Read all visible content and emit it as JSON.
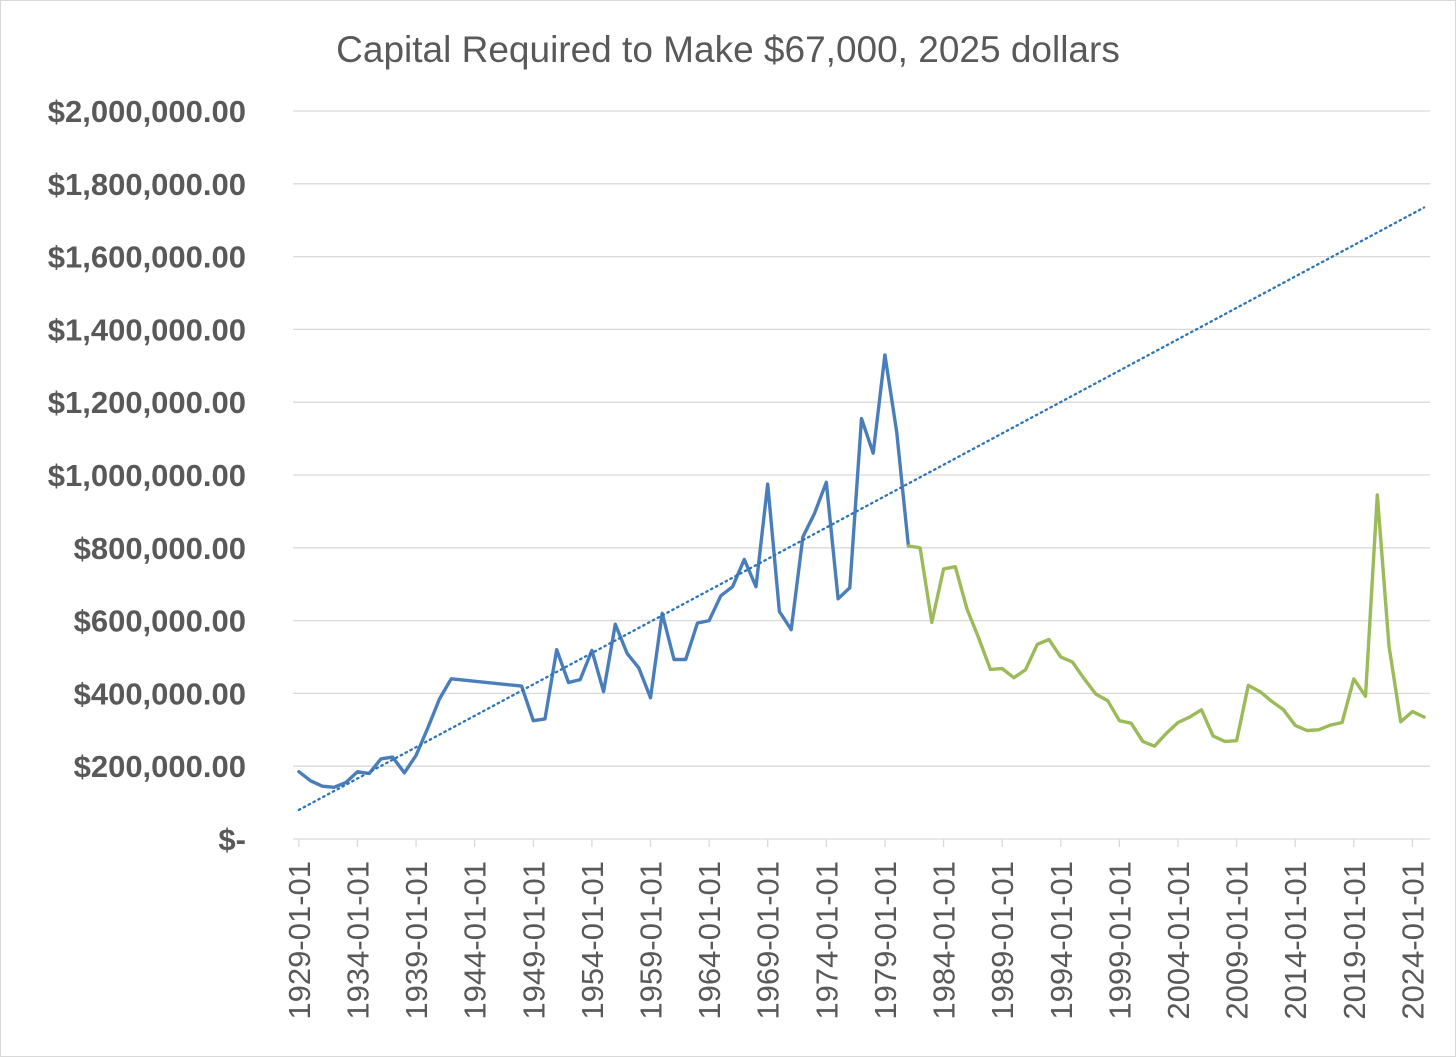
{
  "chart_data": {
    "type": "line",
    "title": "Capital Required to Make $67,000, 2025 dollars",
    "xlabel": "",
    "ylabel": "",
    "x_start_year": 1929,
    "x_end_year": 2025,
    "x_tick_labels": [
      "1929-01-01",
      "1934-01-01",
      "1939-01-01",
      "1944-01-01",
      "1949-01-01",
      "1954-01-01",
      "1959-01-01",
      "1964-01-01",
      "1969-01-01",
      "1974-01-01",
      "1979-01-01",
      "1984-01-01",
      "1989-01-01",
      "1994-01-01",
      "1999-01-01",
      "2004-01-01",
      "2009-01-01",
      "2014-01-01",
      "2019-01-01",
      "2024-01-01"
    ],
    "y_ticks": [
      0,
      200000,
      400000,
      600000,
      800000,
      1000000,
      1200000,
      1400000,
      1600000,
      1800000,
      2000000
    ],
    "y_tick_labels": [
      "$-",
      "$200,000.00",
      "$400,000.00",
      "$600,000.00",
      "$800,000.00",
      "$1,000,000.00",
      "$1,200,000.00",
      "$1,400,000.00",
      "$1,600,000.00",
      "$1,800,000.00",
      "$2,000,000.00"
    ],
    "ylim": [
      0,
      2000000
    ],
    "grid": true,
    "legend": "none",
    "series": [
      {
        "color": "#4a7ebb",
        "style": "solid",
        "points": [
          [
            "1929-01-01",
            185000
          ],
          [
            "1930-01-01",
            160000
          ],
          [
            "1931-01-01",
            145000
          ],
          [
            "1932-01-01",
            142000
          ],
          [
            "1933-01-01",
            155000
          ],
          [
            "1934-01-01",
            185000
          ],
          [
            "1935-01-01",
            180000
          ],
          [
            "1936-01-01",
            220000
          ],
          [
            "1937-01-01",
            225000
          ],
          [
            "1938-01-01",
            182000
          ],
          [
            "1939-01-01",
            230000
          ],
          [
            "1940-01-01",
            305000
          ],
          [
            "1941-01-01",
            385000
          ],
          [
            "1942-01-01",
            440000
          ],
          [
            "1948-01-01",
            420000
          ],
          [
            "1949-01-01",
            325000
          ],
          [
            "1950-01-01",
            330000
          ],
          [
            "1951-01-01",
            520000
          ],
          [
            "1952-01-01",
            430000
          ],
          [
            "1953-01-01",
            438000
          ],
          [
            "1954-01-01",
            518000
          ],
          [
            "1955-01-01",
            405000
          ],
          [
            "1956-01-01",
            590000
          ],
          [
            "1957-01-01",
            510000
          ],
          [
            "1958-01-01",
            470000
          ],
          [
            "1959-01-01",
            388000
          ],
          [
            "1960-01-01",
            620000
          ],
          [
            "1961-01-01",
            493000
          ],
          [
            "1962-01-01",
            493000
          ],
          [
            "1963-01-01",
            593000
          ],
          [
            "1964-01-01",
            600000
          ],
          [
            "1965-01-01",
            668000
          ],
          [
            "1966-01-01",
            693000
          ],
          [
            "1967-01-01",
            768000
          ],
          [
            "1968-01-01",
            693000
          ],
          [
            "1969-01-01",
            975000
          ],
          [
            "1970-01-01",
            625000
          ],
          [
            "1971-01-01",
            575000
          ],
          [
            "1972-01-01",
            830000
          ],
          [
            "1973-01-01",
            895000
          ],
          [
            "1974-01-01",
            980000
          ],
          [
            "1975-01-01",
            660000
          ],
          [
            "1976-01-01",
            690000
          ],
          [
            "1977-01-01",
            1155000
          ],
          [
            "1978-01-01",
            1060000
          ],
          [
            "1979-01-01",
            1330000
          ],
          [
            "1980-01-01",
            1118000
          ],
          [
            "1981-01-01",
            805000
          ]
        ]
      },
      {
        "color": "#9bbb59",
        "style": "solid",
        "points": [
          [
            "1981-01-01",
            805000
          ],
          [
            "1982-01-01",
            800000
          ],
          [
            "1983-01-01",
            595000
          ],
          [
            "1984-01-01",
            742000
          ],
          [
            "1985-01-01",
            748000
          ],
          [
            "1986-01-01",
            632000
          ],
          [
            "1987-01-01",
            552000
          ],
          [
            "1988-01-01",
            466000
          ],
          [
            "1989-01-01",
            468000
          ],
          [
            "1990-01-01",
            443000
          ],
          [
            "1991-01-01",
            465000
          ],
          [
            "1992-01-01",
            535000
          ],
          [
            "1993-01-01",
            548000
          ],
          [
            "1994-01-01",
            500000
          ],
          [
            "1995-01-01",
            486000
          ],
          [
            "1996-01-01",
            440000
          ],
          [
            "1997-01-01",
            398000
          ],
          [
            "1998-01-01",
            380000
          ],
          [
            "1999-01-01",
            325000
          ],
          [
            "2000-01-01",
            318000
          ],
          [
            "2001-01-01",
            268000
          ],
          [
            "2002-01-01",
            255000
          ],
          [
            "2003-01-01",
            290000
          ],
          [
            "2004-01-01",
            320000
          ],
          [
            "2005-01-01",
            335000
          ],
          [
            "2006-01-01",
            355000
          ],
          [
            "2007-01-01",
            283000
          ],
          [
            "2008-01-01",
            268000
          ],
          [
            "2009-01-01",
            270000
          ],
          [
            "2010-01-01",
            422000
          ],
          [
            "2011-01-01",
            405000
          ],
          [
            "2012-01-01",
            378000
          ],
          [
            "2013-01-01",
            355000
          ],
          [
            "2014-01-01",
            312000
          ],
          [
            "2015-01-01",
            298000
          ],
          [
            "2016-01-01",
            300000
          ],
          [
            "2017-01-01",
            313000
          ],
          [
            "2018-01-01",
            320000
          ],
          [
            "2019-01-01",
            440000
          ],
          [
            "2020-01-01",
            392000
          ],
          [
            "2021-01-01",
            945000
          ],
          [
            "2022-01-01",
            530000
          ],
          [
            "2023-01-01",
            322000
          ],
          [
            "2024-01-01",
            350000
          ],
          [
            "2025-01-01",
            335000
          ]
        ]
      },
      {
        "color": "#2e75b6",
        "style": "dotted",
        "trendline": true,
        "points": [
          [
            "1929-01-01",
            80000
          ],
          [
            "2025-01-01",
            1735000
          ]
        ]
      }
    ]
  }
}
